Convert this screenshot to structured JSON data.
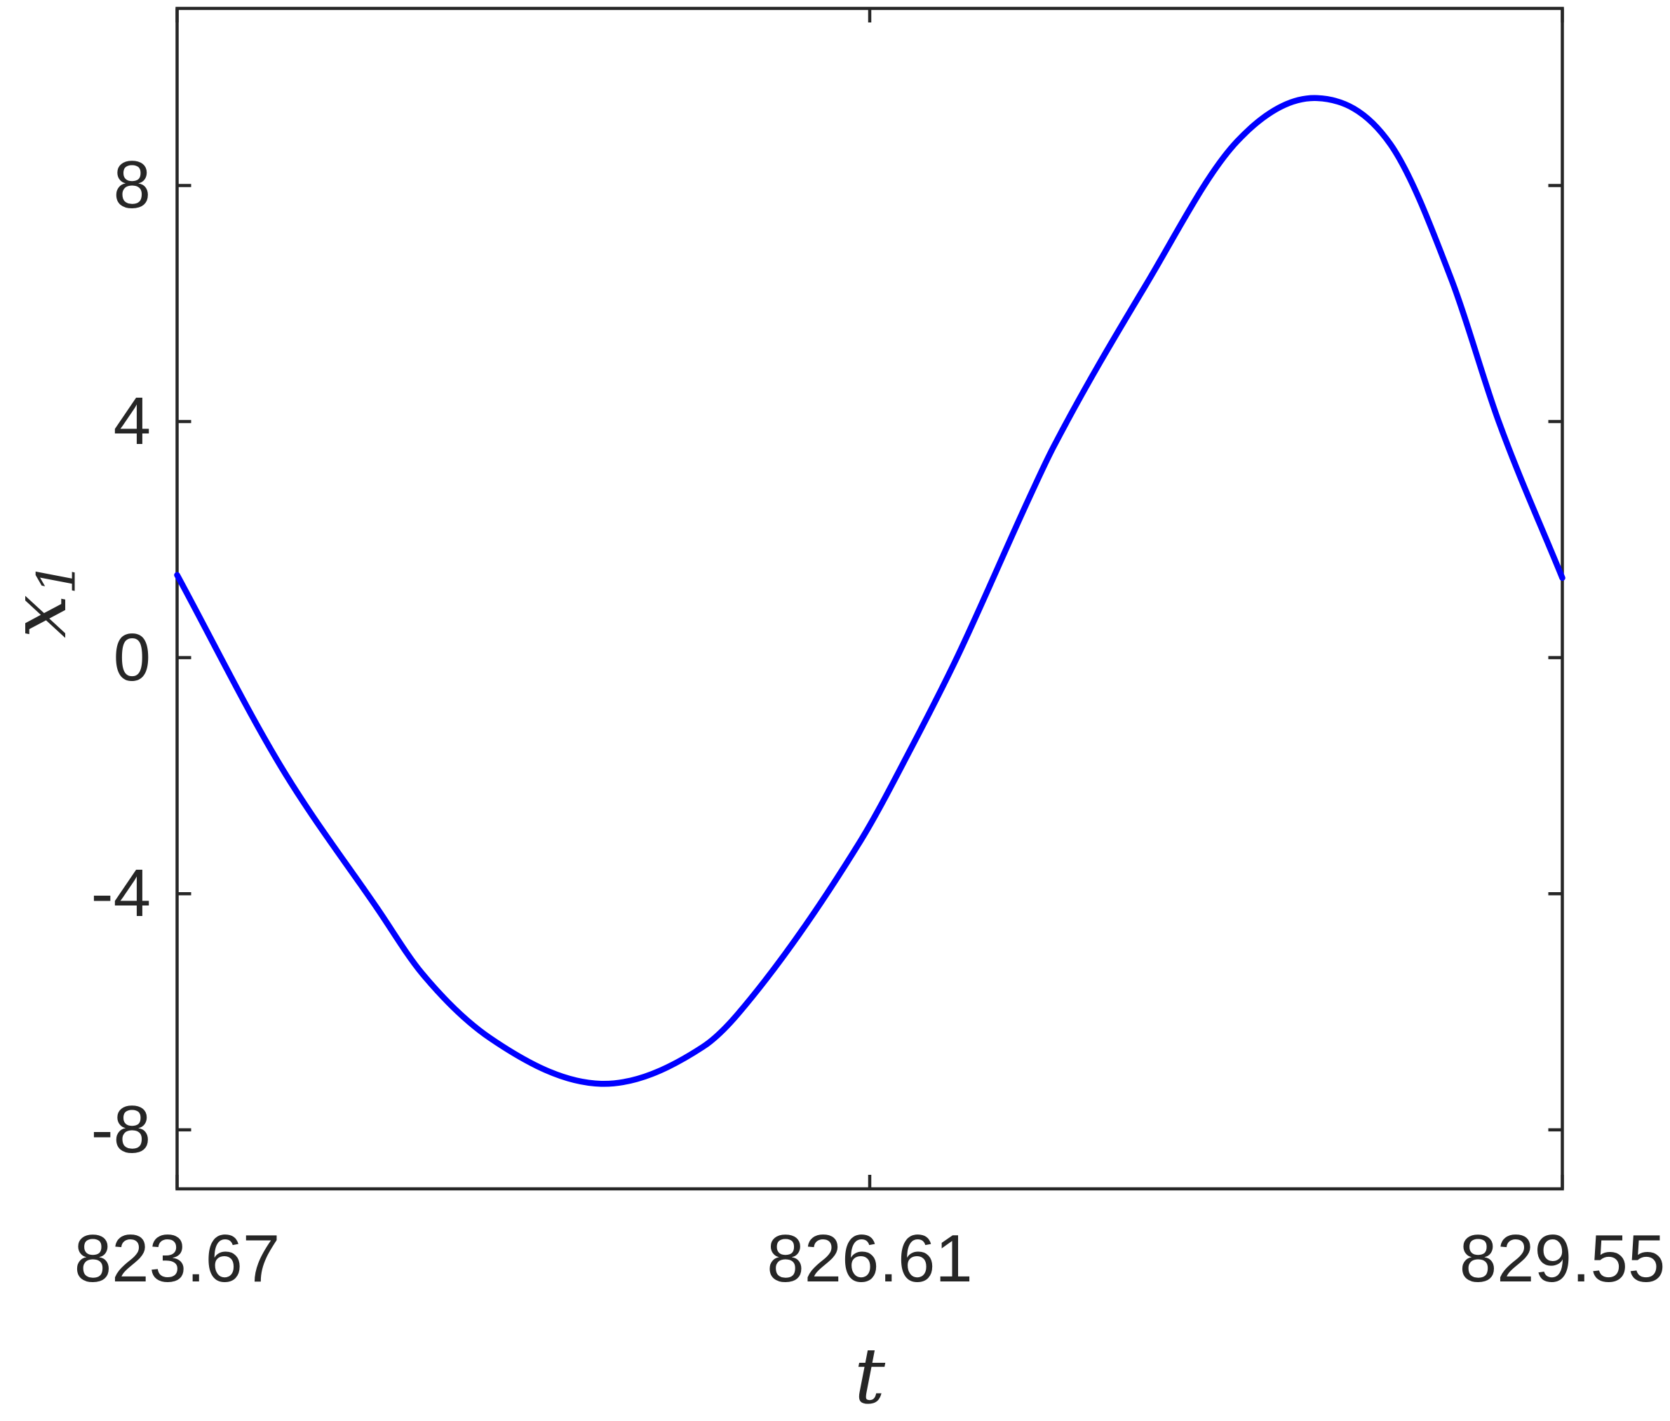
{
  "figure": {
    "background_color": "#ffffff",
    "axes_color": "#262626",
    "tick_label_color": "#262626",
    "line_color": "#0000ff"
  },
  "axes": {
    "xlabel": "t",
    "ylabel_base": "x",
    "ylabel_sub": "1"
  },
  "chart_data": {
    "type": "line",
    "title": "",
    "xlabel": "t",
    "ylabel": "x_1",
    "xlim": [
      823.67,
      829.55
    ],
    "ylim": [
      -9,
      11
    ],
    "grid": false,
    "legend": "none",
    "box": true,
    "tick_direction": "in",
    "xticks": [
      {
        "value": 823.67,
        "label": "823.67"
      },
      {
        "value": 826.61,
        "label": "826.61"
      },
      {
        "value": 829.55,
        "label": "829.55"
      }
    ],
    "yticks": [
      {
        "value": -8,
        "label": "-8"
      },
      {
        "value": -4,
        "label": "-4"
      },
      {
        "value": 0,
        "label": "0"
      },
      {
        "value": 4,
        "label": "4"
      },
      {
        "value": 8,
        "label": "8"
      }
    ],
    "series": [
      {
        "name": "x1",
        "color": "#0000ff",
        "x": [
          823.67,
          824.11,
          824.52,
          824.71,
          825.0,
          825.47,
          825.9,
          826.05,
          826.57,
          826.79,
          826.98,
          827.3,
          827.39,
          827.78,
          828.17,
          828.51,
          828.82,
          829.08,
          829.28,
          829.55
        ],
        "y": [
          1.4,
          -1.84,
          -4.25,
          -5.35,
          -6.45,
          -7.22,
          -6.6,
          -6.04,
          -3.11,
          -1.5,
          0.0,
          2.82,
          3.57,
          6.3,
          8.75,
          9.48,
          8.7,
          6.4,
          4.0,
          1.35
        ]
      }
    ]
  }
}
